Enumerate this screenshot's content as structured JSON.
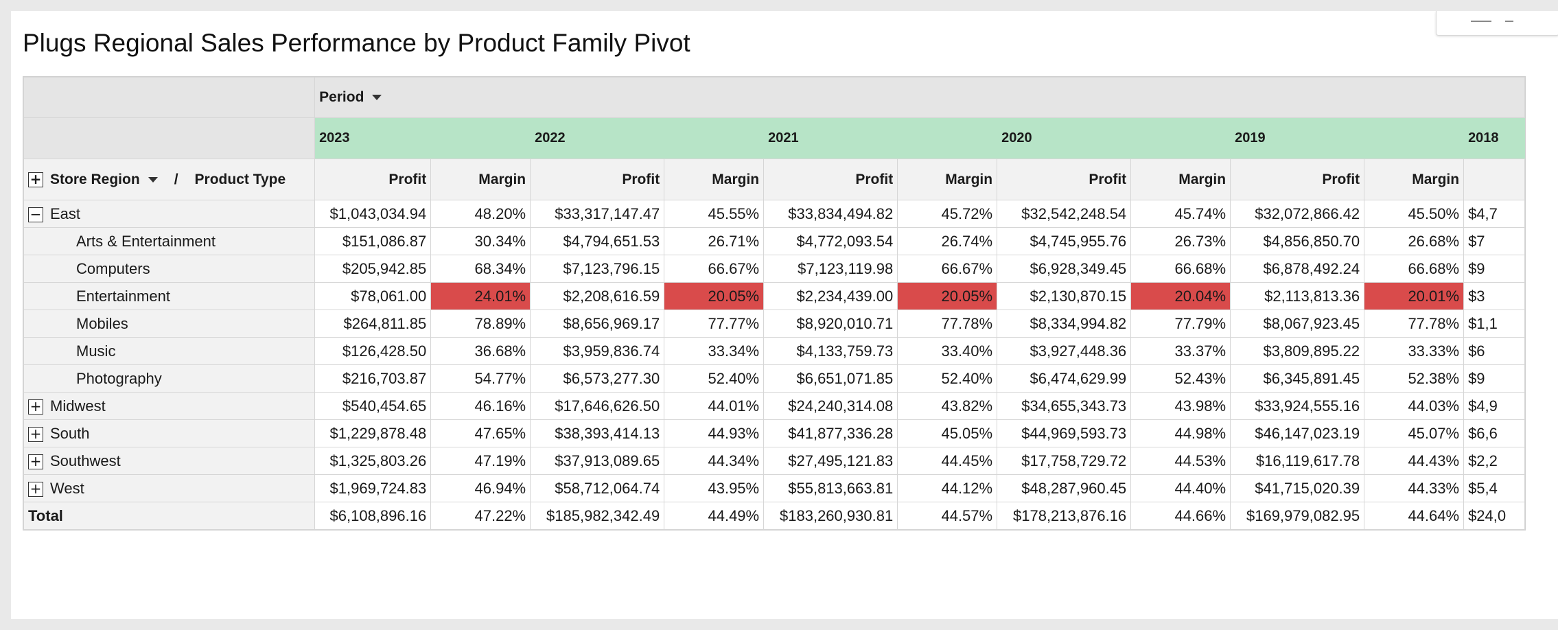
{
  "title": "Plugs Regional Sales Performance by Product Family Pivot",
  "pivot": {
    "column_header_label": "Period",
    "row_header": {
      "store_region": "Store Region",
      "separator": "/",
      "product_type": "Product Type"
    },
    "years": [
      "2023",
      "2022",
      "2021",
      "2020",
      "2019",
      "2018"
    ],
    "measures": {
      "profit": "Profit",
      "margin": "Margin"
    },
    "rows": [
      {
        "label": "East",
        "level": 0,
        "toggle": "−",
        "cells": [
          "$1,043,034.94",
          "48.20%",
          "$33,317,147.47",
          "45.55%",
          "$33,834,494.82",
          "45.72%",
          "$32,542,248.54",
          "45.74%",
          "$32,072,866.42",
          "45.50%",
          "$4,7"
        ]
      },
      {
        "label": "Arts & Entertainment",
        "level": 1,
        "cells": [
          "$151,086.87",
          "30.34%",
          "$4,794,651.53",
          "26.71%",
          "$4,772,093.54",
          "26.74%",
          "$4,745,955.76",
          "26.73%",
          "$4,856,850.70",
          "26.68%",
          "$7"
        ]
      },
      {
        "label": "Computers",
        "level": 1,
        "cells": [
          "$205,942.85",
          "68.34%",
          "$7,123,796.15",
          "66.67%",
          "$7,123,119.98",
          "66.67%",
          "$6,928,349.45",
          "66.68%",
          "$6,878,492.24",
          "66.68%",
          "$9"
        ]
      },
      {
        "label": "Entertainment",
        "level": 1,
        "highlight_margin": true,
        "cells": [
          "$78,061.00",
          "24.01%",
          "$2,208,616.59",
          "20.05%",
          "$2,234,439.00",
          "20.05%",
          "$2,130,870.15",
          "20.04%",
          "$2,113,813.36",
          "20.01%",
          "$3"
        ]
      },
      {
        "label": "Mobiles",
        "level": 1,
        "cells": [
          "$264,811.85",
          "78.89%",
          "$8,656,969.17",
          "77.77%",
          "$8,920,010.71",
          "77.78%",
          "$8,334,994.82",
          "77.79%",
          "$8,067,923.45",
          "77.78%",
          "$1,1"
        ]
      },
      {
        "label": "Music",
        "level": 1,
        "cells": [
          "$126,428.50",
          "36.68%",
          "$3,959,836.74",
          "33.34%",
          "$4,133,759.73",
          "33.40%",
          "$3,927,448.36",
          "33.37%",
          "$3,809,895.22",
          "33.33%",
          "$6"
        ]
      },
      {
        "label": "Photography",
        "level": 1,
        "cells": [
          "$216,703.87",
          "54.77%",
          "$6,573,277.30",
          "52.40%",
          "$6,651,071.85",
          "52.40%",
          "$6,474,629.99",
          "52.43%",
          "$6,345,891.45",
          "52.38%",
          "$9"
        ]
      },
      {
        "label": "Midwest",
        "level": 0,
        "toggle": "+",
        "cells": [
          "$540,454.65",
          "46.16%",
          "$17,646,626.50",
          "44.01%",
          "$24,240,314.08",
          "43.82%",
          "$34,655,343.73",
          "43.98%",
          "$33,924,555.16",
          "44.03%",
          "$4,9"
        ]
      },
      {
        "label": "South",
        "level": 0,
        "toggle": "+",
        "cells": [
          "$1,229,878.48",
          "47.65%",
          "$38,393,414.13",
          "44.93%",
          "$41,877,336.28",
          "45.05%",
          "$44,969,593.73",
          "44.98%",
          "$46,147,023.19",
          "45.07%",
          "$6,6"
        ]
      },
      {
        "label": "Southwest",
        "level": 0,
        "toggle": "+",
        "cells": [
          "$1,325,803.26",
          "47.19%",
          "$37,913,089.65",
          "44.34%",
          "$27,495,121.83",
          "44.45%",
          "$17,758,729.72",
          "44.53%",
          "$16,119,617.78",
          "44.43%",
          "$2,2"
        ]
      },
      {
        "label": "West",
        "level": 0,
        "toggle": "+",
        "cells": [
          "$1,969,724.83",
          "46.94%",
          "$58,712,064.74",
          "43.95%",
          "$55,813,663.81",
          "44.12%",
          "$48,287,960.45",
          "44.40%",
          "$41,715,020.39",
          "44.33%",
          "$5,4"
        ]
      }
    ],
    "total": {
      "label": "Total",
      "cells": [
        "$6,108,896.16",
        "47.22%",
        "$185,982,342.49",
        "44.49%",
        "$183,260,930.81",
        "44.57%",
        "$178,213,876.16",
        "44.66%",
        "$169,979,082.95",
        "44.64%",
        "$24,0"
      ]
    },
    "colors": {
      "year_header": "#b7e4c7",
      "low_margin": "#d94b4b",
      "header_gray": "#e5e5e5"
    }
  }
}
